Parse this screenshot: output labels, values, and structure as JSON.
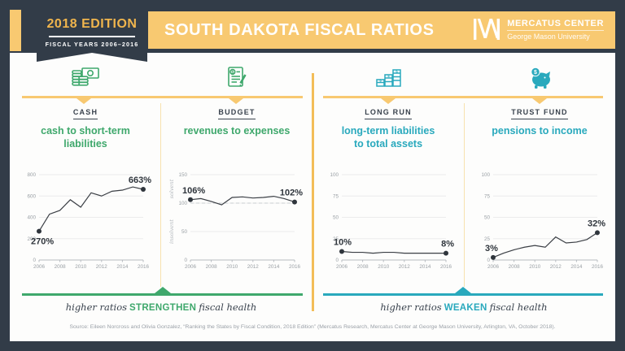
{
  "header": {
    "edition_badge": {
      "title": "2018 EDITION",
      "subtitle": "FISCAL YEARS 2006–2016"
    },
    "title": "SOUTH DAKOTA FISCAL RATIOS",
    "logo": {
      "name": "MERCATUS CENTER",
      "subname": "George Mason University",
      "icon": "mercatus-logo-icon"
    }
  },
  "colors": {
    "navy": "#323c48",
    "amber": "#f8c971",
    "gold": "#f0b54d",
    "green": "#3fa86c",
    "teal": "#29a9bd",
    "line": "#3b3f45"
  },
  "sections": [
    {
      "category": "CASH",
      "icon": "cash-icon",
      "title": "cash to short-term\nliabilities"
    },
    {
      "category": "BUDGET",
      "icon": "budget-icon",
      "title": "revenues to expenses"
    },
    {
      "category": "LONG RUN",
      "icon": "long-run-icon",
      "title": "long-term liabilities\nto total assets"
    },
    {
      "category": "TRUST FUND",
      "icon": "trust-fund-icon",
      "title": "pensions to income"
    }
  ],
  "chart_data": [
    {
      "type": "line",
      "title": "cash to short-term liabilities",
      "group": "CASH",
      "x": [
        2006,
        2007,
        2008,
        2009,
        2010,
        2011,
        2012,
        2013,
        2014,
        2015,
        2016
      ],
      "values": [
        270,
        430,
        465,
        565,
        495,
        630,
        600,
        645,
        655,
        685,
        663
      ],
      "ylim": [
        0,
        800
      ],
      "yticks": [
        0,
        200,
        400,
        600,
        800
      ],
      "xticks": [
        2006,
        2008,
        2010,
        2012,
        2014,
        2016
      ],
      "start_label": "270%",
      "end_label": "663%",
      "start_label_pos": "below",
      "grid": true,
      "legend": "none"
    },
    {
      "type": "line",
      "title": "revenues to expenses",
      "group": "BUDGET",
      "x": [
        2006,
        2007,
        2008,
        2009,
        2010,
        2011,
        2012,
        2013,
        2014,
        2015,
        2016
      ],
      "values": [
        106,
        108,
        103,
        97,
        110,
        111,
        109,
        110,
        112,
        108,
        102
      ],
      "ylim": [
        0,
        150
      ],
      "yticks": [
        0,
        50,
        100,
        150
      ],
      "xticks": [
        2006,
        2008,
        2010,
        2012,
        2014,
        2016
      ],
      "start_label": "106%",
      "end_label": "102%",
      "start_label_pos": "above",
      "ref_line": 100,
      "side_labels": {
        "above": "solvent",
        "below": "insolvent"
      },
      "grid": true,
      "legend": "none"
    },
    {
      "type": "line",
      "title": "long-term liabilities to total assets",
      "group": "LONG RUN",
      "x": [
        2006,
        2007,
        2008,
        2009,
        2010,
        2011,
        2012,
        2013,
        2014,
        2015,
        2016
      ],
      "values": [
        10,
        9,
        9,
        8,
        9,
        9,
        8,
        8,
        8,
        8,
        8
      ],
      "ylim": [
        0,
        100
      ],
      "yticks": [
        0,
        25,
        50,
        75,
        100
      ],
      "xticks": [
        2006,
        2008,
        2010,
        2012,
        2014,
        2016
      ],
      "start_label": "10%",
      "end_label": "8%",
      "start_label_pos": "above",
      "grid": true,
      "legend": "none"
    },
    {
      "type": "line",
      "title": "pensions to income",
      "group": "TRUST FUND",
      "x": [
        2006,
        2007,
        2008,
        2009,
        2010,
        2011,
        2012,
        2013,
        2014,
        2015,
        2016
      ],
      "values": [
        3,
        8,
        12,
        15,
        17,
        15,
        27,
        20,
        21,
        24,
        32
      ],
      "ylim": [
        0,
        100
      ],
      "yticks": [
        0,
        25,
        50,
        75,
        100
      ],
      "xticks": [
        2006,
        2008,
        2010,
        2012,
        2014,
        2016
      ],
      "start_label": "3%",
      "end_label": "32%",
      "start_label_pos": "above",
      "grid": true,
      "legend": "none"
    }
  ],
  "footers": {
    "strengthen": {
      "prefix": "higher ratios",
      "keyword": "STRENGTHEN",
      "suffix": "fiscal health"
    },
    "weaken": {
      "prefix": "higher ratios",
      "keyword": "WEAKEN",
      "suffix": "fiscal health"
    }
  },
  "source": "Source: Eileen Norcross and Olivia Gonzalez, “Ranking the States by Fiscal Condition, 2018 Edition” (Mercatus Research, Mercatus Center at George Mason University, Arlington, VA, October 2018)."
}
